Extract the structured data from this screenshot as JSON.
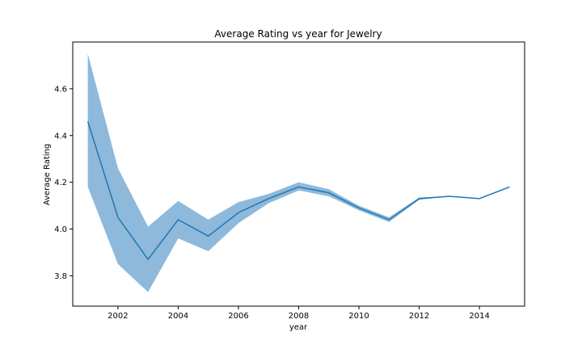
{
  "chart_data": {
    "type": "line",
    "title": "Average Rating vs year for Jewelry",
    "xlabel": "year",
    "ylabel": "Average Rating",
    "xlim": [
      2000.5,
      2015.5
    ],
    "ylim": [
      3.67,
      4.8
    ],
    "x_ticks": [
      2002,
      2004,
      2006,
      2008,
      2010,
      2012,
      2014
    ],
    "y_ticks": [
      3.8,
      4.0,
      4.2,
      4.4,
      4.6
    ],
    "grid": false,
    "series": [
      {
        "x": [
          2001,
          2002,
          2003,
          2004,
          2005,
          2006,
          2007,
          2008,
          2009,
          2010,
          2011,
          2012,
          2013,
          2014,
          2015
        ],
        "y": [
          4.46,
          4.05,
          3.87,
          4.04,
          3.97,
          4.07,
          4.13,
          4.18,
          4.155,
          4.09,
          4.04,
          4.13,
          4.14,
          4.13,
          4.18
        ],
        "ci_upper": [
          4.75,
          4.26,
          4.01,
          4.12,
          4.04,
          4.115,
          4.15,
          4.2,
          4.17,
          4.1,
          4.05,
          4.135,
          4.14,
          4.13,
          4.18
        ],
        "ci_lower": [
          4.18,
          3.85,
          3.73,
          3.96,
          3.905,
          4.025,
          4.11,
          4.165,
          4.14,
          4.08,
          4.03,
          4.125,
          4.14,
          4.13,
          4.18
        ]
      }
    ],
    "colors": {
      "line": "#1f77b4",
      "band": "#8fb9da",
      "axis": "#000000"
    }
  }
}
